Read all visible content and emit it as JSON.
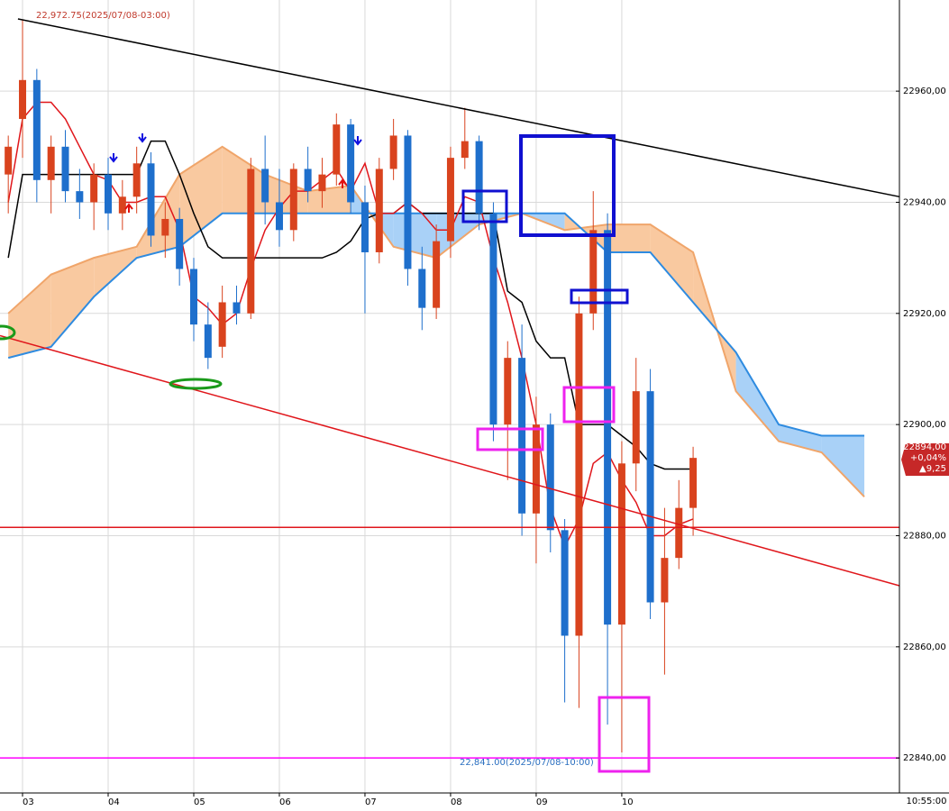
{
  "chart_data": {
    "type": "candlestick",
    "x": [
      -1,
      0,
      1,
      2,
      3,
      4,
      5,
      6,
      7,
      8,
      9,
      10,
      11,
      12,
      13,
      14,
      15,
      16,
      17,
      18,
      19,
      20,
      21,
      22,
      23,
      24,
      25,
      26,
      27,
      28,
      29,
      30,
      31,
      32,
      33,
      34,
      35,
      36,
      37,
      38,
      39,
      40,
      41,
      42,
      43,
      44,
      45,
      46,
      47
    ],
    "open": [
      22945,
      22955,
      22962,
      22944,
      22950,
      22942,
      22940,
      22945,
      22938,
      22941,
      22947,
      22934,
      22937,
      22928,
      22918,
      22914,
      22922,
      22920,
      22946,
      22940,
      22935,
      22946,
      22942,
      22945,
      22954,
      22940,
      22931,
      22946,
      22952,
      22928,
      22921,
      22933,
      22948,
      22951,
      22938,
      22900,
      22912,
      22884,
      22900,
      22881,
      22862,
      22920,
      22935,
      22864,
      22893,
      22906,
      22868,
      22876,
      22885
    ],
    "high": [
      22952,
      22972.75,
      22964,
      22952,
      22953,
      22946,
      22947,
      22948,
      22944,
      22950,
      22949,
      22940,
      22939,
      22930,
      22922,
      22925,
      22925,
      22948,
      22952,
      22946,
      22947,
      22950,
      22948,
      22956,
      22955,
      22943,
      22948,
      22955,
      22953,
      22932,
      22936,
      22950,
      22957,
      22952,
      22940,
      22915,
      22918,
      22905,
      22902,
      22883,
      22923,
      22942,
      22938,
      22897,
      22912,
      22910,
      22885,
      22890,
      22896
    ],
    "low": [
      22938,
      22948,
      22940,
      22938,
      22940,
      22937,
      22935,
      22935,
      22935,
      22938,
      22932,
      22930,
      22925,
      22915,
      22910,
      22912,
      22918,
      22919,
      22936,
      22932,
      22933,
      22940,
      22939,
      22943,
      22938,
      22920,
      22929,
      22944,
      22925,
      22917,
      22919,
      22930,
      22946,
      22935,
      22897,
      22890,
      22880,
      22875,
      22877,
      22850,
      22849,
      22917,
      22846,
      22841,
      22888,
      22865,
      22855,
      22874,
      22880
    ],
    "close": [
      22950,
      22962,
      22944,
      22950,
      22942,
      22940,
      22945,
      22938,
      22941,
      22947,
      22934,
      22937,
      22928,
      22918,
      22912,
      22922,
      22920,
      22946,
      22940,
      22935,
      22946,
      22942,
      22945,
      22954,
      22940,
      22931,
      22946,
      22952,
      22928,
      22921,
      22933,
      22948,
      22951,
      22938,
      22900,
      22912,
      22884,
      22900,
      22881,
      22862,
      22920,
      22935,
      22864,
      22893,
      22906,
      22868,
      22876,
      22885,
      22894
    ],
    "up_color": "#d9431e",
    "down_color": "#1e6fcc",
    "lines": [
      {
        "color": "#000000",
        "values": [
          22930,
          22945,
          22945,
          22945,
          22945,
          22945,
          22945,
          22945,
          22945,
          22945,
          22951,
          22951,
          22945,
          22938,
          22932,
          22930,
          22930,
          22930,
          22930,
          22930,
          22930,
          22930,
          22930,
          22931,
          22933,
          22937,
          22938,
          22938,
          22940,
          22938,
          22938,
          22938,
          22938,
          22938,
          22938,
          22924,
          22922,
          22915,
          22912,
          22912,
          22900,
          22900,
          22900,
          22898,
          22896,
          22893,
          22892,
          22892,
          22892
        ]
      },
      {
        "color": "#e0161b",
        "values": [
          22940,
          22955,
          22958,
          22958,
          22955,
          22950,
          22945,
          22944,
          22940,
          22940,
          22941,
          22941,
          22935,
          22923,
          22921,
          22918,
          22920,
          22928,
          22935,
          22939,
          22942,
          22942,
          22944,
          22946,
          22942,
          22947,
          22938,
          22938,
          22940,
          22938,
          22935,
          22935,
          22941,
          22940,
          22930,
          22922,
          22912,
          22900,
          22885,
          22878,
          22883,
          22893,
          22895,
          22890,
          22886,
          22880,
          22880,
          22882,
          22883
        ]
      }
    ],
    "cloud": {
      "x": [
        -1,
        2,
        5,
        8,
        11,
        14,
        17,
        20,
        23,
        26,
        29,
        32,
        35,
        38,
        41,
        44,
        47,
        50,
        53,
        56,
        59
      ],
      "edge_a": [
        22920,
        22927,
        22930,
        22932,
        22945,
        22950,
        22945,
        22942,
        22943,
        22932,
        22930,
        22936,
        22938,
        22935,
        22936,
        22936,
        22931,
        22906,
        22897,
        22895,
        22887
      ],
      "edge_b": [
        22912,
        22914,
        22923,
        22930,
        22932,
        22938,
        22938,
        22938,
        22938,
        22938,
        22938,
        22938,
        22938,
        22938,
        22931,
        22931,
        22922,
        22913,
        22900,
        22898,
        22898
      ],
      "edge_a_color": "#f0a56a",
      "edge_b_color": "#2e8be0",
      "fill_a": "#f9c9a0",
      "fill_b": "#a9d1f7"
    },
    "trendlines": [
      {
        "color": "#000000",
        "x": [
          -0.32,
          61.46
        ],
        "y": [
          22973,
          22941
        ]
      },
      {
        "color": "#e0161b",
        "x": [
          -1.58,
          61.46
        ],
        "y": [
          22916,
          22871
        ]
      }
    ],
    "hlines": [
      {
        "value": 22881.5,
        "color": "#e0161b"
      },
      {
        "value": 22840,
        "color": "#ff00ff"
      }
    ],
    "xlim": [
      -1.58,
      61.46
    ],
    "ylim": [
      22833.7,
      22976.4
    ],
    "xticks": [
      {
        "value": 0,
        "label": "03"
      },
      {
        "value": 6,
        "label": "04"
      },
      {
        "value": 12,
        "label": "05"
      },
      {
        "value": 18,
        "label": "06"
      },
      {
        "value": 24,
        "label": "07"
      },
      {
        "value": 30,
        "label": "08"
      },
      {
        "value": 36,
        "label": "09"
      },
      {
        "value": 42,
        "label": "10"
      }
    ],
    "yticks": [
      {
        "value": 22840,
        "label": "22840,00"
      },
      {
        "value": 22860,
        "label": "22860,00"
      },
      {
        "value": 22880,
        "label": "22880,00"
      },
      {
        "value": 22900,
        "label": "22900,00"
      },
      {
        "value": 22920,
        "label": "22920,00"
      },
      {
        "value": 22940,
        "label": "22940,00"
      },
      {
        "value": 22960,
        "label": "22960,00"
      }
    ],
    "grid": true,
    "high_label": "22,972.75(2025/07/08-03:00)",
    "low_label": "22,841.00(2025/07/08-10:00)",
    "last_price": {
      "price": "22894,00",
      "change_pct": "+0,04%",
      "change": "▲9,25"
    },
    "time_label": "10:55:00"
  }
}
